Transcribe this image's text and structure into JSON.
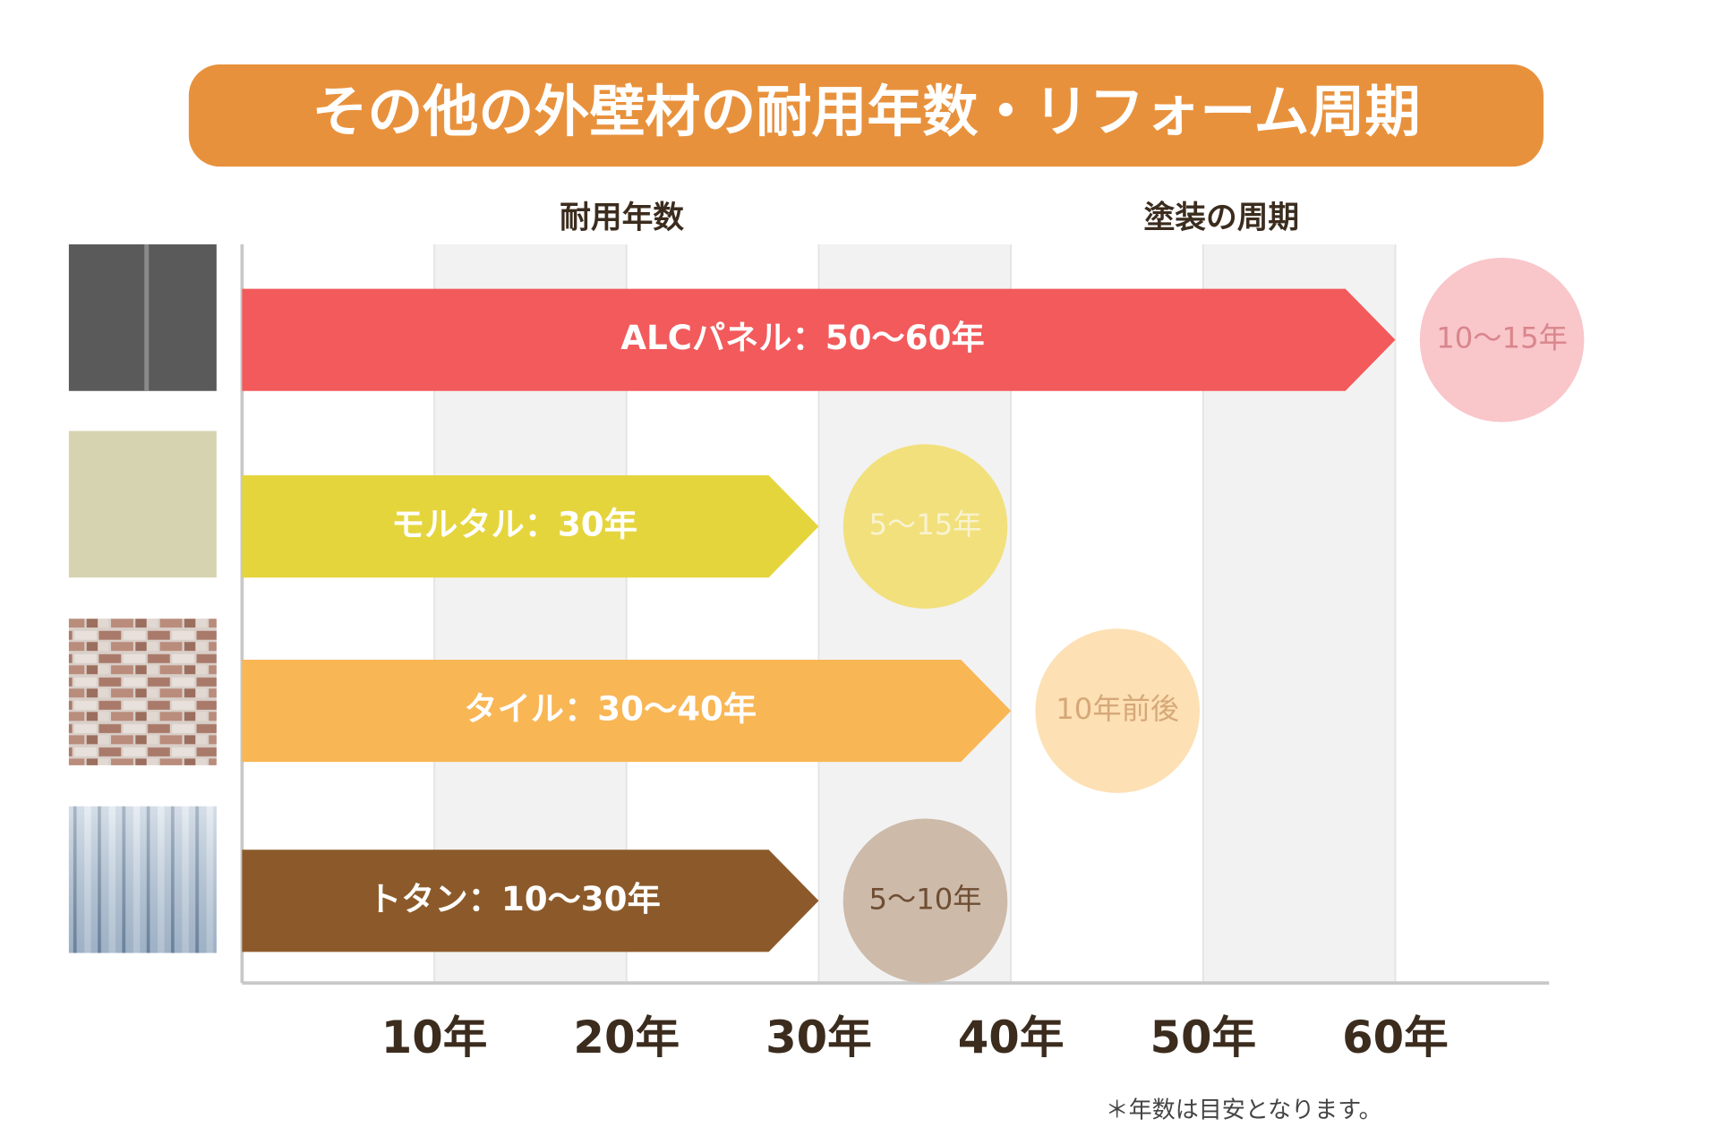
{
  "chart_data": {
    "type": "bar",
    "orientation": "horizontal",
    "title": "その他の外壁材の耐用年数・リフォーム周期",
    "value_header": "耐用年数",
    "cycle_header": "塗装の周期",
    "categories": [
      "ALCパネル：50〜60年",
      "モルタル：30年",
      "タイル：30〜40年",
      "トタン：10〜30年"
    ],
    "values": [
      60,
      30,
      40,
      30
    ],
    "colors": [
      "#f25a5b",
      "#e5d53d",
      "#f9b655",
      "#8c5a2a"
    ],
    "cycles": [
      "10〜15年",
      "5〜15年",
      "10年前後",
      "5〜10年"
    ],
    "cycle_colors": [
      "#f9c6ca",
      "#f2e07c",
      "#fde0b4",
      "#cdbaa9"
    ],
    "cycle_text_colors": [
      "#d8868c",
      "#f8f3d0",
      "#d6a878",
      "#6e4e34"
    ],
    "xlim": [
      0,
      68
    ],
    "xticks": [
      {
        "value": 10,
        "label": "10年"
      },
      {
        "value": 20,
        "label": "20年"
      },
      {
        "value": 30,
        "label": "30年"
      },
      {
        "value": 40,
        "label": "40年"
      },
      {
        "value": 50,
        "label": "50年"
      },
      {
        "value": 60,
        "label": "60年"
      }
    ],
    "grid": true,
    "note": "＊年数は目安となります。"
  }
}
